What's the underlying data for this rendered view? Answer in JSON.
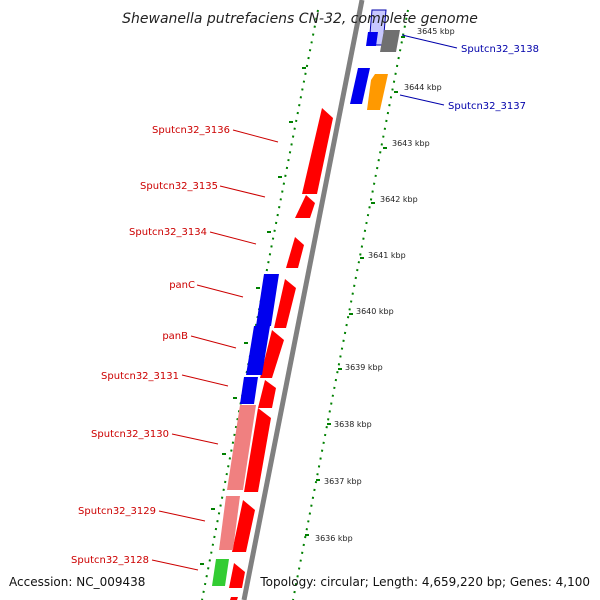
{
  "title": "Shewanella putrefaciens CN-32, complete genome",
  "footer": {
    "accession": "Accession: NC_009438",
    "topology": "Topology: circular; Length: 4,659,220 bp; Genes: 4,100"
  },
  "ticks": [
    "3645 kbp",
    "3644 kbp",
    "3643 kbp",
    "3642 kbp",
    "3641 kbp",
    "3640 kbp",
    "3639 kbp",
    "3638 kbp",
    "3637 kbp",
    "3636 kbp"
  ],
  "gene_labels_left": [
    "Sputcn32_3136",
    "Sputcn32_3135",
    "Sputcn32_3134",
    "panC",
    "panB",
    "Sputcn32_3131",
    "Sputcn32_3130",
    "Sputcn32_3129",
    "Sputcn32_3128"
  ],
  "gene_labels_right": [
    "Sputcn32_3138",
    "Sputcn32_3137"
  ],
  "colors": {
    "backbone": "#808080",
    "tick_dots": "#008000",
    "forward_gene": "#ff0000",
    "reverse_gene": "#0000ee",
    "pink_gene": "#f08080",
    "orange_gene": "#ff9900",
    "green_gene": "#33cc33",
    "label_red": "#cc0000",
    "label_blue": "#0000aa"
  }
}
